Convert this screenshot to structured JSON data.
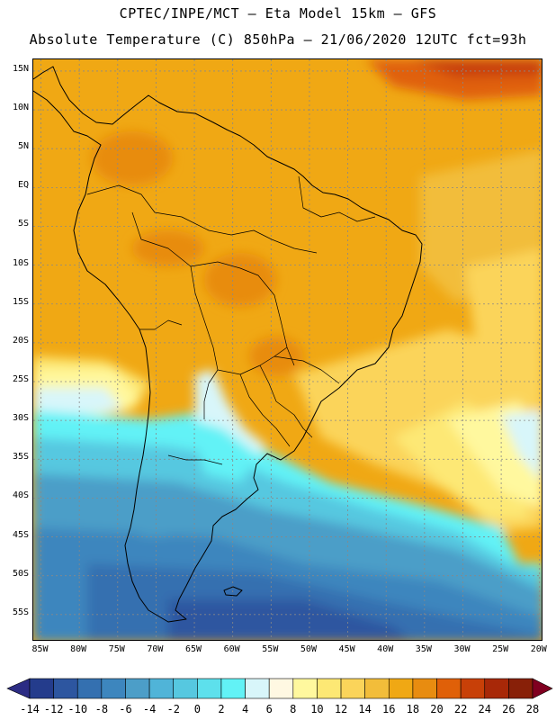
{
  "title": {
    "line1": "CPTEC/INPE/MCT –  Eta Model 15km – GFS",
    "line2": "Absolute Temperature (C) 850hPa – 21/06/2020 12UTC fct=93h"
  },
  "map": {
    "region": "South America",
    "variable": "Absolute Temperature (C) 850hPa",
    "lat_labels": [
      "15N",
      "10N",
      "5N",
      "EQ",
      "5S",
      "10S",
      "15S",
      "20S",
      "25S",
      "30S",
      "35S",
      "40S",
      "45S",
      "50S",
      "55S"
    ],
    "lat_values": [
      15,
      10,
      5,
      0,
      -5,
      -10,
      -15,
      -20,
      -25,
      -30,
      -35,
      -40,
      -45,
      -50,
      -55
    ],
    "lon_labels": [
      "85W",
      "80W",
      "75W",
      "70W",
      "65W",
      "60W",
      "55W",
      "50W",
      "45W",
      "40W",
      "35W",
      "30W",
      "25W",
      "20W"
    ],
    "lon_values": [
      -85,
      -80,
      -75,
      -70,
      -65,
      -60,
      -55,
      -50,
      -45,
      -40,
      -35,
      -30,
      -25,
      -20
    ]
  },
  "colorbar": {
    "labels": [
      "-14",
      "-12",
      "-10",
      "-8",
      "-6",
      "-4",
      "-2",
      "0",
      "2",
      "4",
      "6",
      "8",
      "10",
      "12",
      "14",
      "16",
      "18",
      "20",
      "22",
      "24",
      "26",
      "28"
    ],
    "colors": [
      "#243c8c",
      "#2d56a0",
      "#3470b0",
      "#3d86be",
      "#4c9ec8",
      "#50b4d8",
      "#56c8e0",
      "#5de0ec",
      "#62f2f6",
      "#d8f6fa",
      "#fff8e2",
      "#fff89e",
      "#fde874",
      "#fbd45a",
      "#f2bd3a",
      "#f0a814",
      "#e88c10",
      "#e06008",
      "#c84008",
      "#a82808",
      "#882008"
    ],
    "under_color": "#2c2c84",
    "over_color": "#800020"
  }
}
